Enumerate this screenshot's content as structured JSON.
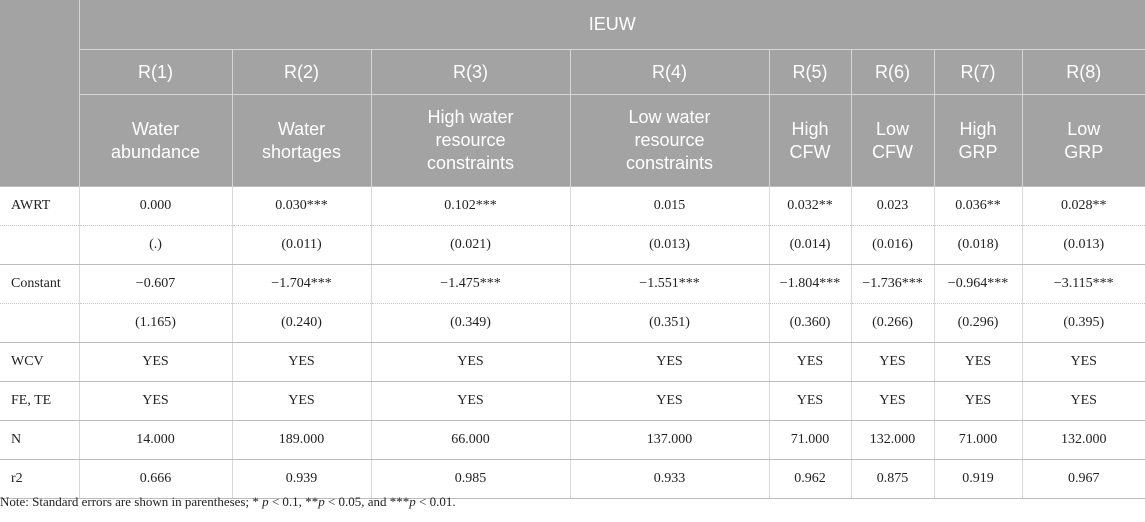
{
  "header": {
    "group_label": "IEUW",
    "models": [
      "R(1)",
      "R(2)",
      "R(3)",
      "R(4)",
      "R(5)",
      "R(6)",
      "R(7)",
      "R(8)"
    ],
    "subgroups": [
      [
        "Water",
        "abundance"
      ],
      [
        "Water",
        "shortages"
      ],
      [
        "High water",
        "resource",
        "constraints"
      ],
      [
        "Low water",
        "resource",
        "constraints"
      ],
      [
        "High",
        "CFW"
      ],
      [
        "Low",
        "CFW"
      ],
      [
        "High",
        "GRP"
      ],
      [
        "Low",
        "GRP"
      ]
    ]
  },
  "rows": [
    {
      "label": "AWRT",
      "values": [
        "0.000",
        "0.030***",
        "0.102***",
        "0.015",
        "0.032**",
        "0.023",
        "0.036**",
        "0.028**"
      ]
    },
    {
      "label": "",
      "values": [
        "(.)",
        "(0.011)",
        "(0.021)",
        "(0.013)",
        "(0.014)",
        "(0.016)",
        "(0.018)",
        "(0.013)"
      ]
    },
    {
      "label": "Constant",
      "values": [
        "−0.607",
        "−1.704***",
        "−1.475***",
        "−1.551***",
        "−1.804***",
        "−1.736***",
        "−0.964***",
        "−3.115***"
      ]
    },
    {
      "label": "",
      "values": [
        "(1.165)",
        "(0.240)",
        "(0.349)",
        "(0.351)",
        "(0.360)",
        "(0.266)",
        "(0.296)",
        "(0.395)"
      ]
    },
    {
      "label": "WCV",
      "values": [
        "YES",
        "YES",
        "YES",
        "YES",
        "YES",
        "YES",
        "YES",
        "YES"
      ]
    },
    {
      "label": "FE, TE",
      "values": [
        "YES",
        "YES",
        "YES",
        "YES",
        "YES",
        "YES",
        "YES",
        "YES"
      ]
    },
    {
      "label": "N",
      "values": [
        "14.000",
        "189.000",
        "66.000",
        "137.000",
        "71.000",
        "132.000",
        "71.000",
        "132.000"
      ]
    },
    {
      "label": "r2",
      "values": [
        "0.666",
        "0.939",
        "0.985",
        "0.933",
        "0.962",
        "0.875",
        "0.919",
        "0.967"
      ]
    }
  ],
  "note": {
    "prefix": "Note: Standard errors are shown in parentheses;",
    "sig1_stars": "*",
    "sig1_var": "p",
    "sig1_text": "< 0.1,",
    "sig2_stars": "**",
    "sig2_var": "p",
    "sig2_text": "< 0.05, and",
    "sig3_stars": "***",
    "sig3_var": "p",
    "sig3_text": "< 0.01."
  }
}
